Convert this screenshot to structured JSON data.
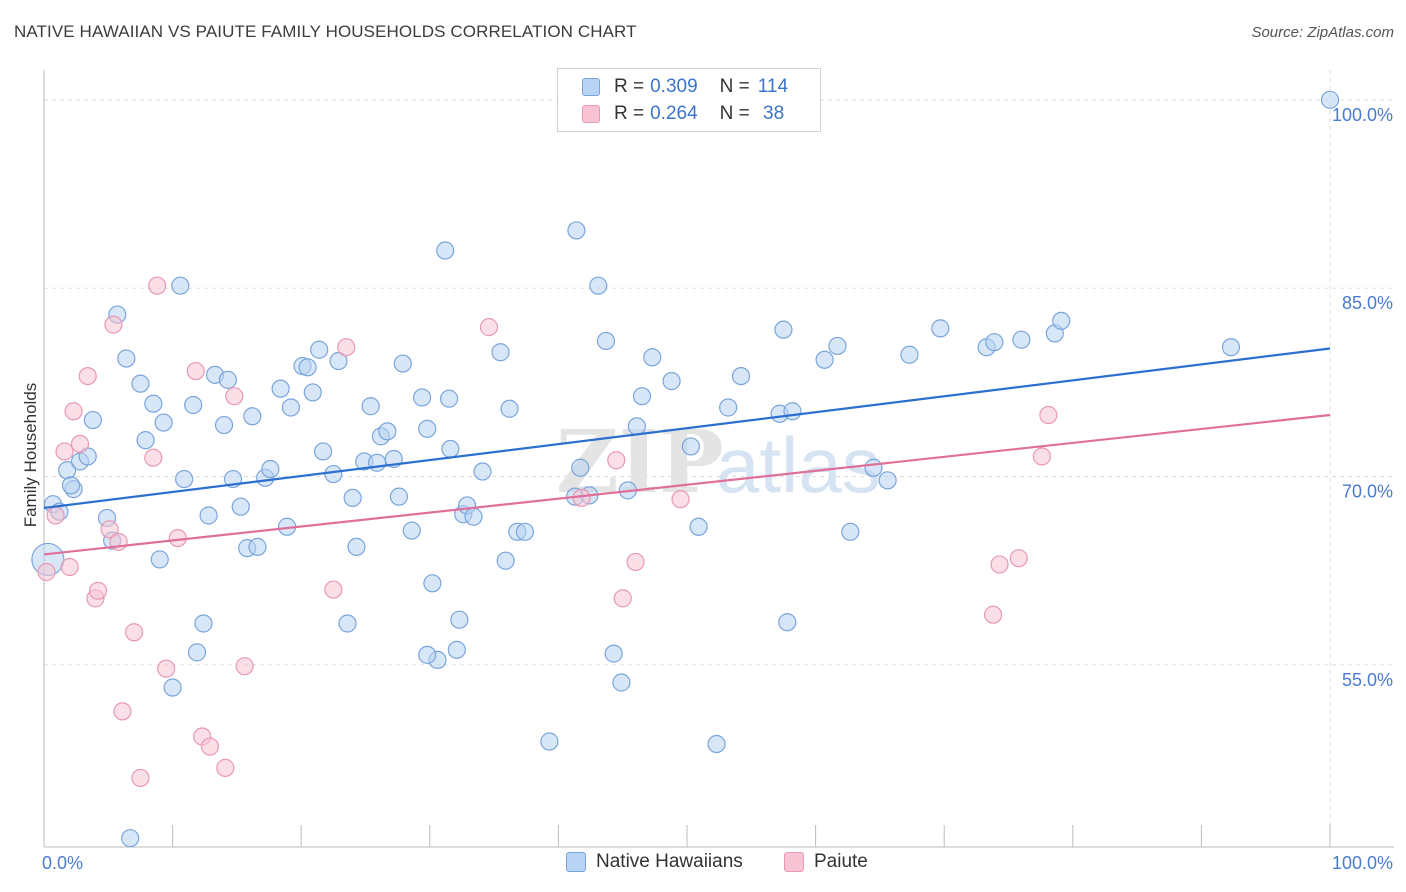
{
  "header": {
    "title": "NATIVE HAWAIIAN VS PAIUTE FAMILY HOUSEHOLDS CORRELATION CHART",
    "source": "Source: ZipAtlas.com"
  },
  "watermark": {
    "zip": "ZIP",
    "atlas": "atlas"
  },
  "colors": {
    "blue_fill": "#b8d3f3",
    "blue_stroke": "#7aa5dc",
    "blue_line": "#2b6fd0",
    "pink_fill": "#f8c4d4",
    "pink_stroke": "#e899b3",
    "pink_line": "#e0709a",
    "tick_label": "#4a7bd0",
    "grid": "#dddddd"
  },
  "legend": {
    "rows": [
      {
        "r_label": "R = ",
        "r_value": "0.309",
        "n_label": "N = ",
        "n_value": "114",
        "color": "blue"
      },
      {
        "r_label": "R = ",
        "r_value": "0.264",
        "n_label": "N = ",
        "n_value": " 38",
        "color": "pink"
      }
    ]
  },
  "chart_data": {
    "type": "scatter",
    "title": "NATIVE HAWAIIAN VS PAIUTE FAMILY HOUSEHOLDS CORRELATION CHART",
    "xlabel": "",
    "ylabel": "Family Households",
    "xlim": [
      0,
      100
    ],
    "ylim": [
      40.5,
      101.5
    ],
    "x_tick_labels": [
      "0.0%",
      "100.0%"
    ],
    "y_ticks": [
      55,
      70,
      85,
      100
    ],
    "y_tick_labels": [
      "55.0%",
      "70.0%",
      "85.0%",
      "100.0%"
    ],
    "grid": true,
    "legend_position": "bottom-center",
    "series": [
      {
        "name": "Native Hawaiians",
        "color": "blue",
        "regression": {
          "x": [
            0,
            100
          ],
          "y": [
            67.5,
            80.2
          ]
        },
        "points": [
          [
            0.3,
            63.4
          ],
          [
            0.7,
            67.8
          ],
          [
            1.2,
            67.2
          ],
          [
            1.8,
            70.5
          ],
          [
            2.3,
            69.0
          ],
          [
            2.8,
            71.2
          ],
          [
            3.4,
            71.6
          ],
          [
            3.8,
            74.5
          ],
          [
            4.9,
            66.7
          ],
          [
            5.3,
            64.9
          ],
          [
            5.7,
            82.9
          ],
          [
            6.4,
            79.4
          ],
          [
            7.5,
            77.4
          ],
          [
            7.9,
            72.9
          ],
          [
            8.5,
            75.8
          ],
          [
            9.0,
            63.4
          ],
          [
            9.3,
            74.3
          ],
          [
            10.0,
            53.2
          ],
          [
            10.6,
            85.2
          ],
          [
            10.9,
            69.8
          ],
          [
            11.6,
            75.7
          ],
          [
            12.4,
            58.3
          ],
          [
            12.8,
            66.9
          ],
          [
            11.9,
            56.0
          ],
          [
            13.3,
            78.1
          ],
          [
            14.0,
            74.1
          ],
          [
            14.3,
            77.7
          ],
          [
            14.7,
            69.8
          ],
          [
            15.3,
            67.6
          ],
          [
            15.8,
            64.3
          ],
          [
            16.2,
            74.8
          ],
          [
            16.6,
            64.4
          ],
          [
            17.2,
            69.9
          ],
          [
            17.6,
            70.6
          ],
          [
            18.4,
            77.0
          ],
          [
            18.9,
            66.0
          ],
          [
            19.2,
            75.5
          ],
          [
            20.1,
            78.8
          ],
          [
            20.5,
            78.7
          ],
          [
            20.9,
            76.7
          ],
          [
            21.4,
            80.1
          ],
          [
            21.7,
            72.0
          ],
          [
            22.5,
            70.2
          ],
          [
            22.9,
            79.2
          ],
          [
            23.6,
            58.3
          ],
          [
            24.0,
            68.3
          ],
          [
            24.3,
            64.4
          ],
          [
            24.9,
            71.2
          ],
          [
            25.4,
            75.6
          ],
          [
            25.9,
            71.1
          ],
          [
            26.2,
            73.2
          ],
          [
            26.7,
            73.6
          ],
          [
            27.2,
            71.4
          ],
          [
            27.6,
            68.4
          ],
          [
            27.9,
            79.0
          ],
          [
            28.6,
            65.7
          ],
          [
            29.4,
            76.3
          ],
          [
            29.8,
            73.8
          ],
          [
            30.2,
            61.5
          ],
          [
            31.2,
            88.0
          ],
          [
            31.5,
            76.2
          ],
          [
            31.6,
            72.2
          ],
          [
            32.1,
            56.2
          ],
          [
            32.3,
            58.6
          ],
          [
            32.6,
            67.0
          ],
          [
            32.9,
            67.7
          ],
          [
            33.4,
            66.8
          ],
          [
            34.1,
            70.4
          ],
          [
            35.5,
            79.9
          ],
          [
            35.9,
            63.3
          ],
          [
            36.2,
            75.4
          ],
          [
            36.8,
            65.6
          ],
          [
            37.4,
            65.6
          ],
          [
            39.3,
            48.9
          ],
          [
            41.4,
            89.6
          ],
          [
            41.3,
            68.4
          ],
          [
            41.7,
            70.7
          ],
          [
            42.4,
            68.5
          ],
          [
            43.1,
            85.2
          ],
          [
            43.7,
            80.8
          ],
          [
            44.3,
            55.9
          ],
          [
            44.9,
            53.6
          ],
          [
            45.4,
            68.9
          ],
          [
            46.1,
            74.0
          ],
          [
            46.5,
            76.4
          ],
          [
            47.3,
            79.5
          ],
          [
            48.8,
            77.6
          ],
          [
            50.3,
            72.4
          ],
          [
            50.9,
            66.0
          ],
          [
            52.3,
            48.7
          ],
          [
            53.2,
            75.5
          ],
          [
            54.2,
            78.0
          ],
          [
            57.2,
            75.0
          ],
          [
            57.5,
            81.7
          ],
          [
            57.8,
            58.4
          ],
          [
            58.2,
            75.2
          ],
          [
            60.7,
            79.3
          ],
          [
            61.7,
            80.4
          ],
          [
            62.7,
            65.6
          ],
          [
            64.5,
            70.7
          ],
          [
            65.6,
            69.7
          ],
          [
            67.3,
            79.7
          ],
          [
            69.7,
            81.8
          ],
          [
            73.3,
            80.3
          ],
          [
            73.9,
            80.7
          ],
          [
            76.0,
            80.9
          ],
          [
            78.6,
            81.4
          ],
          [
            79.1,
            82.4
          ],
          [
            92.3,
            80.3
          ],
          [
            100.0,
            100.0
          ],
          [
            6.7,
            41.2
          ],
          [
            2.1,
            69.3
          ],
          [
            30.6,
            55.4
          ],
          [
            29.8,
            55.8
          ]
        ]
      },
      {
        "name": "Paiute",
        "color": "pink",
        "regression": {
          "x": [
            0,
            100
          ],
          "y": [
            63.8,
            74.9
          ]
        },
        "points": [
          [
            0.2,
            62.4
          ],
          [
            0.9,
            66.9
          ],
          [
            1.6,
            72.0
          ],
          [
            2.0,
            62.8
          ],
          [
            2.3,
            75.2
          ],
          [
            2.8,
            72.6
          ],
          [
            3.4,
            78.0
          ],
          [
            4.0,
            60.3
          ],
          [
            4.2,
            60.9
          ],
          [
            5.1,
            65.8
          ],
          [
            5.4,
            82.1
          ],
          [
            5.8,
            64.8
          ],
          [
            6.1,
            51.3
          ],
          [
            7.0,
            57.6
          ],
          [
            7.5,
            46.0
          ],
          [
            8.5,
            71.5
          ],
          [
            8.8,
            85.2
          ],
          [
            9.5,
            54.7
          ],
          [
            10.4,
            65.1
          ],
          [
            11.8,
            78.4
          ],
          [
            12.3,
            49.3
          ],
          [
            12.9,
            48.5
          ],
          [
            14.1,
            46.8
          ],
          [
            14.8,
            76.4
          ],
          [
            15.6,
            54.9
          ],
          [
            22.5,
            61.0
          ],
          [
            23.5,
            80.3
          ],
          [
            34.6,
            81.9
          ],
          [
            41.8,
            68.3
          ],
          [
            44.5,
            71.3
          ],
          [
            45.0,
            60.3
          ],
          [
            46.0,
            63.2
          ],
          [
            49.5,
            68.2
          ],
          [
            73.8,
            59.0
          ],
          [
            74.3,
            63.0
          ],
          [
            75.8,
            63.5
          ],
          [
            77.6,
            71.6
          ],
          [
            78.1,
            74.9
          ]
        ]
      }
    ]
  },
  "bottom_legend": {
    "items": [
      {
        "label": "Native Hawaiians",
        "color": "blue"
      },
      {
        "label": "Paiute",
        "color": "pink"
      }
    ]
  }
}
